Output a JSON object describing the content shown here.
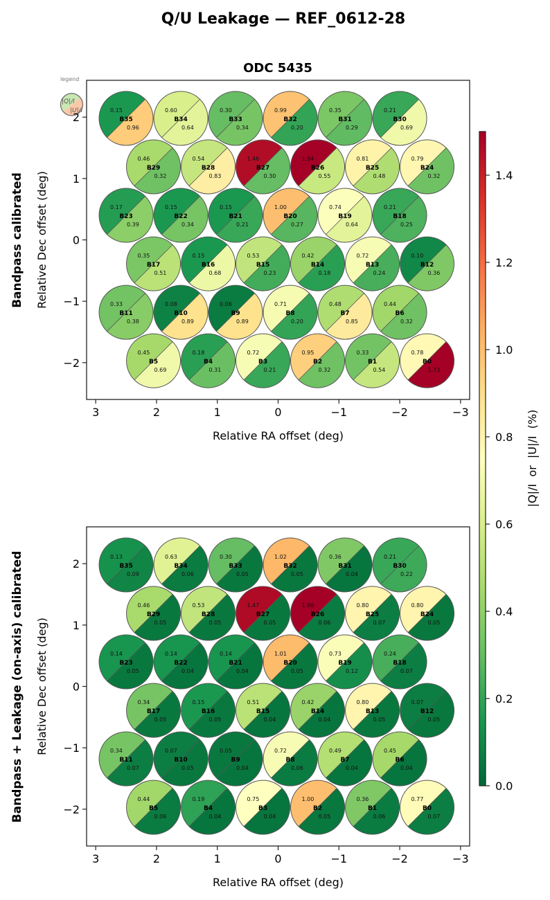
{
  "chart_data": {
    "type": "heatmap",
    "title": "Q/U Leakage — REF_0612-28",
    "subtitle": "ODC 5435",
    "legend": {
      "label": "legend",
      "q_label": "|Q|/I",
      "u_label": "|U|/I",
      "placement": "top-left"
    },
    "colorbar": {
      "label": "|Q|/I  or  |U|/I  (%)",
      "colormap": "RdYlGn_r",
      "range": [
        0.0,
        1.5
      ],
      "ticks": [
        "0.0",
        "0.2",
        "0.4",
        "0.6",
        "0.8",
        "1.0",
        "1.2",
        "1.4"
      ]
    },
    "xlabel": "Relative RA offset (deg)",
    "ylabel": "Relative Dec offset (deg)",
    "xlim": [
      3.15,
      -3.15
    ],
    "ylim": [
      -2.6,
      2.6
    ],
    "xticks": [
      "3",
      "2",
      "1",
      "0",
      "−1",
      "−2",
      "−3"
    ],
    "yticks": [
      "−2",
      "−1",
      "0",
      "1",
      "2"
    ],
    "beam_positions": [
      {
        "beam": "B35",
        "ra": 2.5,
        "dec": 1.98
      },
      {
        "beam": "B34",
        "ra": 1.6,
        "dec": 1.98
      },
      {
        "beam": "B33",
        "ra": 0.7,
        "dec": 1.98
      },
      {
        "beam": "B32",
        "ra": -0.2,
        "dec": 1.98
      },
      {
        "beam": "B31",
        "ra": -1.1,
        "dec": 1.98
      },
      {
        "beam": "B30",
        "ra": -2.0,
        "dec": 1.98
      },
      {
        "beam": "B29",
        "ra": 2.05,
        "dec": 1.19
      },
      {
        "beam": "B28",
        "ra": 1.15,
        "dec": 1.19
      },
      {
        "beam": "B27",
        "ra": 0.25,
        "dec": 1.19
      },
      {
        "beam": "B26",
        "ra": -0.65,
        "dec": 1.19
      },
      {
        "beam": "B25",
        "ra": -1.55,
        "dec": 1.19
      },
      {
        "beam": "B24",
        "ra": -2.45,
        "dec": 1.19
      },
      {
        "beam": "B23",
        "ra": 2.5,
        "dec": 0.4
      },
      {
        "beam": "B22",
        "ra": 1.6,
        "dec": 0.4
      },
      {
        "beam": "B21",
        "ra": 0.7,
        "dec": 0.4
      },
      {
        "beam": "B20",
        "ra": -0.2,
        "dec": 0.4
      },
      {
        "beam": "B19",
        "ra": -1.1,
        "dec": 0.4
      },
      {
        "beam": "B18",
        "ra": -2.0,
        "dec": 0.4
      },
      {
        "beam": "B17",
        "ra": 2.05,
        "dec": -0.39
      },
      {
        "beam": "B16",
        "ra": 1.15,
        "dec": -0.39
      },
      {
        "beam": "B15",
        "ra": 0.25,
        "dec": -0.39
      },
      {
        "beam": "B14",
        "ra": -0.65,
        "dec": -0.39
      },
      {
        "beam": "B13",
        "ra": -1.55,
        "dec": -0.39
      },
      {
        "beam": "B12",
        "ra": -2.45,
        "dec": -0.39
      },
      {
        "beam": "B11",
        "ra": 2.5,
        "dec": -1.18
      },
      {
        "beam": "B10",
        "ra": 1.6,
        "dec": -1.18
      },
      {
        "beam": "B9",
        "ra": 0.7,
        "dec": -1.18
      },
      {
        "beam": "B8",
        "ra": -0.2,
        "dec": -1.18
      },
      {
        "beam": "B7",
        "ra": -1.1,
        "dec": -1.18
      },
      {
        "beam": "B6",
        "ra": -2.0,
        "dec": -1.18
      },
      {
        "beam": "B5",
        "ra": 2.05,
        "dec": -1.97
      },
      {
        "beam": "B4",
        "ra": 1.15,
        "dec": -1.97
      },
      {
        "beam": "B3",
        "ra": 0.25,
        "dec": -1.97
      },
      {
        "beam": "B2",
        "ra": -0.65,
        "dec": -1.97
      },
      {
        "beam": "B1",
        "ra": -1.55,
        "dec": -1.97
      },
      {
        "beam": "B0",
        "ra": -2.45,
        "dec": -1.97
      }
    ],
    "panels": [
      {
        "row_label": "Bandpass calibrated",
        "series": [
          {
            "name": "|Q|/I",
            "values": {
              "B35": 0.15,
              "B34": 0.6,
              "B33": 0.3,
              "B32": 0.99,
              "B31": 0.35,
              "B30": 0.21,
              "B29": 0.46,
              "B28": 0.54,
              "B27": 1.46,
              "B26": 1.94,
              "B25": 0.81,
              "B24": 0.79,
              "B23": 0.17,
              "B22": 0.15,
              "B21": 0.15,
              "B20": 1.0,
              "B19": 0.74,
              "B18": 0.21,
              "B17": 0.35,
              "B16": 0.15,
              "B15": 0.53,
              "B14": 0.42,
              "B13": 0.72,
              "B12": 0.1,
              "B11": 0.33,
              "B10": 0.08,
              "B9": 0.06,
              "B8": 0.71,
              "B7": 0.48,
              "B6": 0.44,
              "B5": 0.45,
              "B4": 0.18,
              "B3": 0.72,
              "B2": 0.95,
              "B1": 0.33,
              "B0": 0.78
            }
          },
          {
            "name": "|U|/I",
            "values": {
              "B35": 0.96,
              "B34": 0.64,
              "B33": 0.34,
              "B32": 0.2,
              "B31": 0.29,
              "B30": 0.69,
              "B29": 0.32,
              "B28": 0.83,
              "B27": 0.3,
              "B26": 0.55,
              "B25": 0.48,
              "B24": 0.32,
              "B23": 0.39,
              "B22": 0.34,
              "B21": 0.21,
              "B20": 0.27,
              "B19": 0.64,
              "B18": 0.25,
              "B17": 0.51,
              "B16": 0.68,
              "B15": 0.23,
              "B14": 0.18,
              "B13": 0.24,
              "B12": 0.36,
              "B11": 0.38,
              "B10": 0.89,
              "B9": 0.89,
              "B8": 0.2,
              "B7": 0.85,
              "B6": 0.32,
              "B5": 0.69,
              "B4": 0.31,
              "B3": 0.21,
              "B2": 0.32,
              "B1": 0.54,
              "B0": 1.73
            }
          }
        ]
      },
      {
        "row_label": "Bandpass + Leakage (on-axis) calibrated",
        "series": [
          {
            "name": "|Q|/I",
            "values": {
              "B35": 0.13,
              "B34": 0.63,
              "B33": 0.3,
              "B32": 1.02,
              "B31": 0.36,
              "B30": 0.21,
              "B29": 0.46,
              "B28": 0.53,
              "B27": 1.47,
              "B26": 1.96,
              "B25": 0.8,
              "B24": 0.8,
              "B23": 0.14,
              "B22": 0.14,
              "B21": 0.14,
              "B20": 1.01,
              "B19": 0.73,
              "B18": 0.24,
              "B17": 0.34,
              "B16": 0.15,
              "B15": 0.51,
              "B14": 0.42,
              "B13": 0.8,
              "B12": 0.07,
              "B11": 0.34,
              "B10": 0.07,
              "B9": 0.05,
              "B8": 0.72,
              "B7": 0.49,
              "B6": 0.45,
              "B5": 0.44,
              "B4": 0.19,
              "B3": 0.75,
              "B2": 1.0,
              "B1": 0.36,
              "B0": 0.77
            }
          },
          {
            "name": "|U|/I",
            "values": {
              "B35": 0.09,
              "B34": 0.06,
              "B33": 0.05,
              "B32": 0.05,
              "B31": 0.04,
              "B30": 0.22,
              "B29": 0.05,
              "B28": 0.05,
              "B27": 0.05,
              "B26": 0.06,
              "B25": 0.07,
              "B24": 0.05,
              "B23": 0.05,
              "B22": 0.04,
              "B21": 0.04,
              "B20": 0.05,
              "B19": 0.12,
              "B18": 0.07,
              "B17": 0.05,
              "B16": 0.05,
              "B15": 0.04,
              "B14": 0.04,
              "B13": 0.05,
              "B12": 0.05,
              "B11": 0.07,
              "B10": 0.05,
              "B9": 0.04,
              "B8": 0.06,
              "B7": 0.04,
              "B6": 0.04,
              "B5": 0.06,
              "B4": 0.04,
              "B3": 0.04,
              "B2": 0.05,
              "B1": 0.06,
              "B0": 0.07
            }
          }
        ]
      }
    ]
  }
}
